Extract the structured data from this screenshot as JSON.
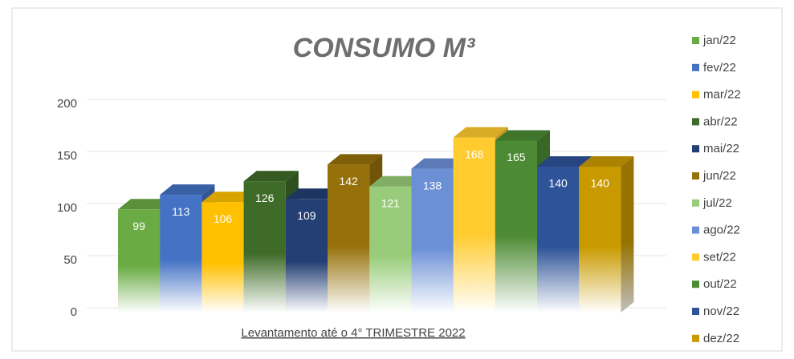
{
  "chart_data": {
    "type": "bar3d",
    "title": "CONSUMO M³",
    "xlabel": "Levantamento até o 4° TRIMESTRE 2022",
    "categories": [
      "jan/22",
      "fev/22",
      "mar/22",
      "abr/22",
      "mai/22",
      "jun/22",
      "jul/22",
      "ago/22",
      "set/22",
      "out/22",
      "nov/22",
      "dez/22"
    ],
    "values": [
      99,
      113,
      106,
      126,
      109,
      142,
      121,
      138,
      168,
      165,
      140,
      140
    ],
    "colors": [
      "#6aab45",
      "#4472c4",
      "#ffc000",
      "#3f6b28",
      "#233f73",
      "#96700a",
      "#98cc7a",
      "#6b90d6",
      "#ffcb2e",
      "#4c8a34",
      "#2e5398",
      "#c99a00"
    ],
    "ylim": [
      0,
      200
    ],
    "yticks": [
      0,
      50,
      100,
      150,
      200
    ],
    "grid": true,
    "legend": "right"
  }
}
